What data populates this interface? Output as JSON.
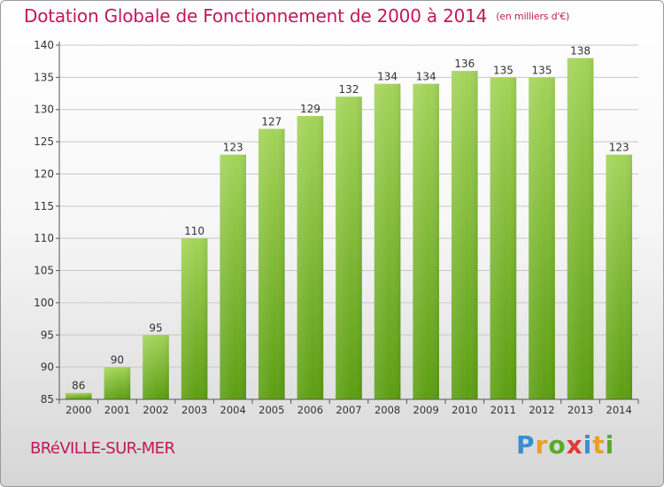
{
  "header": {
    "title": "Dotation Globale de Fonctionnement de 2000 à 2014",
    "unit_note": "(en milliers d'€)"
  },
  "footer": {
    "city": "BRéVILLE-SUR-MER",
    "brand_letters": [
      "P",
      "r",
      "o",
      "x",
      "i",
      "t",
      "i"
    ],
    "brand_colors": [
      "#3a8fd0",
      "#e8a028",
      "#5aaa2a",
      "#e03a3a",
      "#3a8fd0",
      "#e8a028",
      "#5aaa2a"
    ]
  },
  "colors": {
    "title": "#c2185b",
    "bar_light": "#a3d45a",
    "bar_dark": "#5c9e12",
    "axis_text": "#333333",
    "grid": "#c8c8c8"
  },
  "chart_data": {
    "type": "bar",
    "title": "Dotation Globale de Fonctionnement de 2000 à 2014",
    "subtitle": "(en milliers d'€)",
    "categories": [
      "2000",
      "2001",
      "2002",
      "2003",
      "2004",
      "2005",
      "2006",
      "2007",
      "2008",
      "2009",
      "2010",
      "2011",
      "2012",
      "2013",
      "2014"
    ],
    "values": [
      86,
      90,
      95,
      110,
      123,
      127,
      129,
      132,
      134,
      134,
      136,
      135,
      135,
      138,
      123
    ],
    "ylim": [
      85,
      140
    ],
    "yticks": [
      85,
      90,
      95,
      100,
      105,
      110,
      115,
      120,
      125,
      130,
      135,
      140
    ],
    "grid": true,
    "xlabel": "",
    "ylabel": ""
  }
}
